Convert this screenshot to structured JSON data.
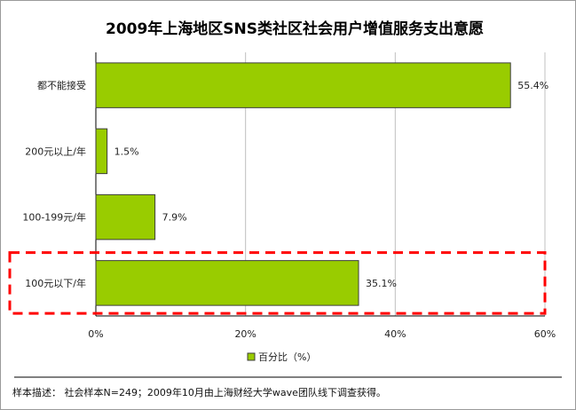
{
  "chart_data": {
    "type": "bar",
    "orientation": "horizontal",
    "title": "2009年上海地区SNS类社区社会用户增值服务支出意愿",
    "categories": [
      "都不能接受",
      "200元以上/年",
      "100-199元/年",
      "100元以下/年"
    ],
    "series": [
      {
        "name": "百分比（%）",
        "values": [
          55.4,
          1.5,
          7.9,
          35.1
        ],
        "labels": [
          "55.4%",
          "1.5%",
          "7.9%",
          "35.1%"
        ]
      }
    ],
    "xlim": [
      0,
      60
    ],
    "xticks": [
      0,
      20,
      40,
      60
    ],
    "xtick_labels": [
      "0%",
      "20%",
      "40%",
      "60%"
    ],
    "grid": true,
    "legend": "bottom",
    "highlighted_category": "100元以下/年"
  },
  "footer": {
    "text": "样本描述：  社会样本N=249；2009年10月由上海财经大学wave团队线下调查获得。"
  },
  "colors": {
    "bar_fill": "#99cc00",
    "bar_stroke": "#3d3d3d",
    "highlight": "#ff0000",
    "grid": "#c0c0c0"
  }
}
